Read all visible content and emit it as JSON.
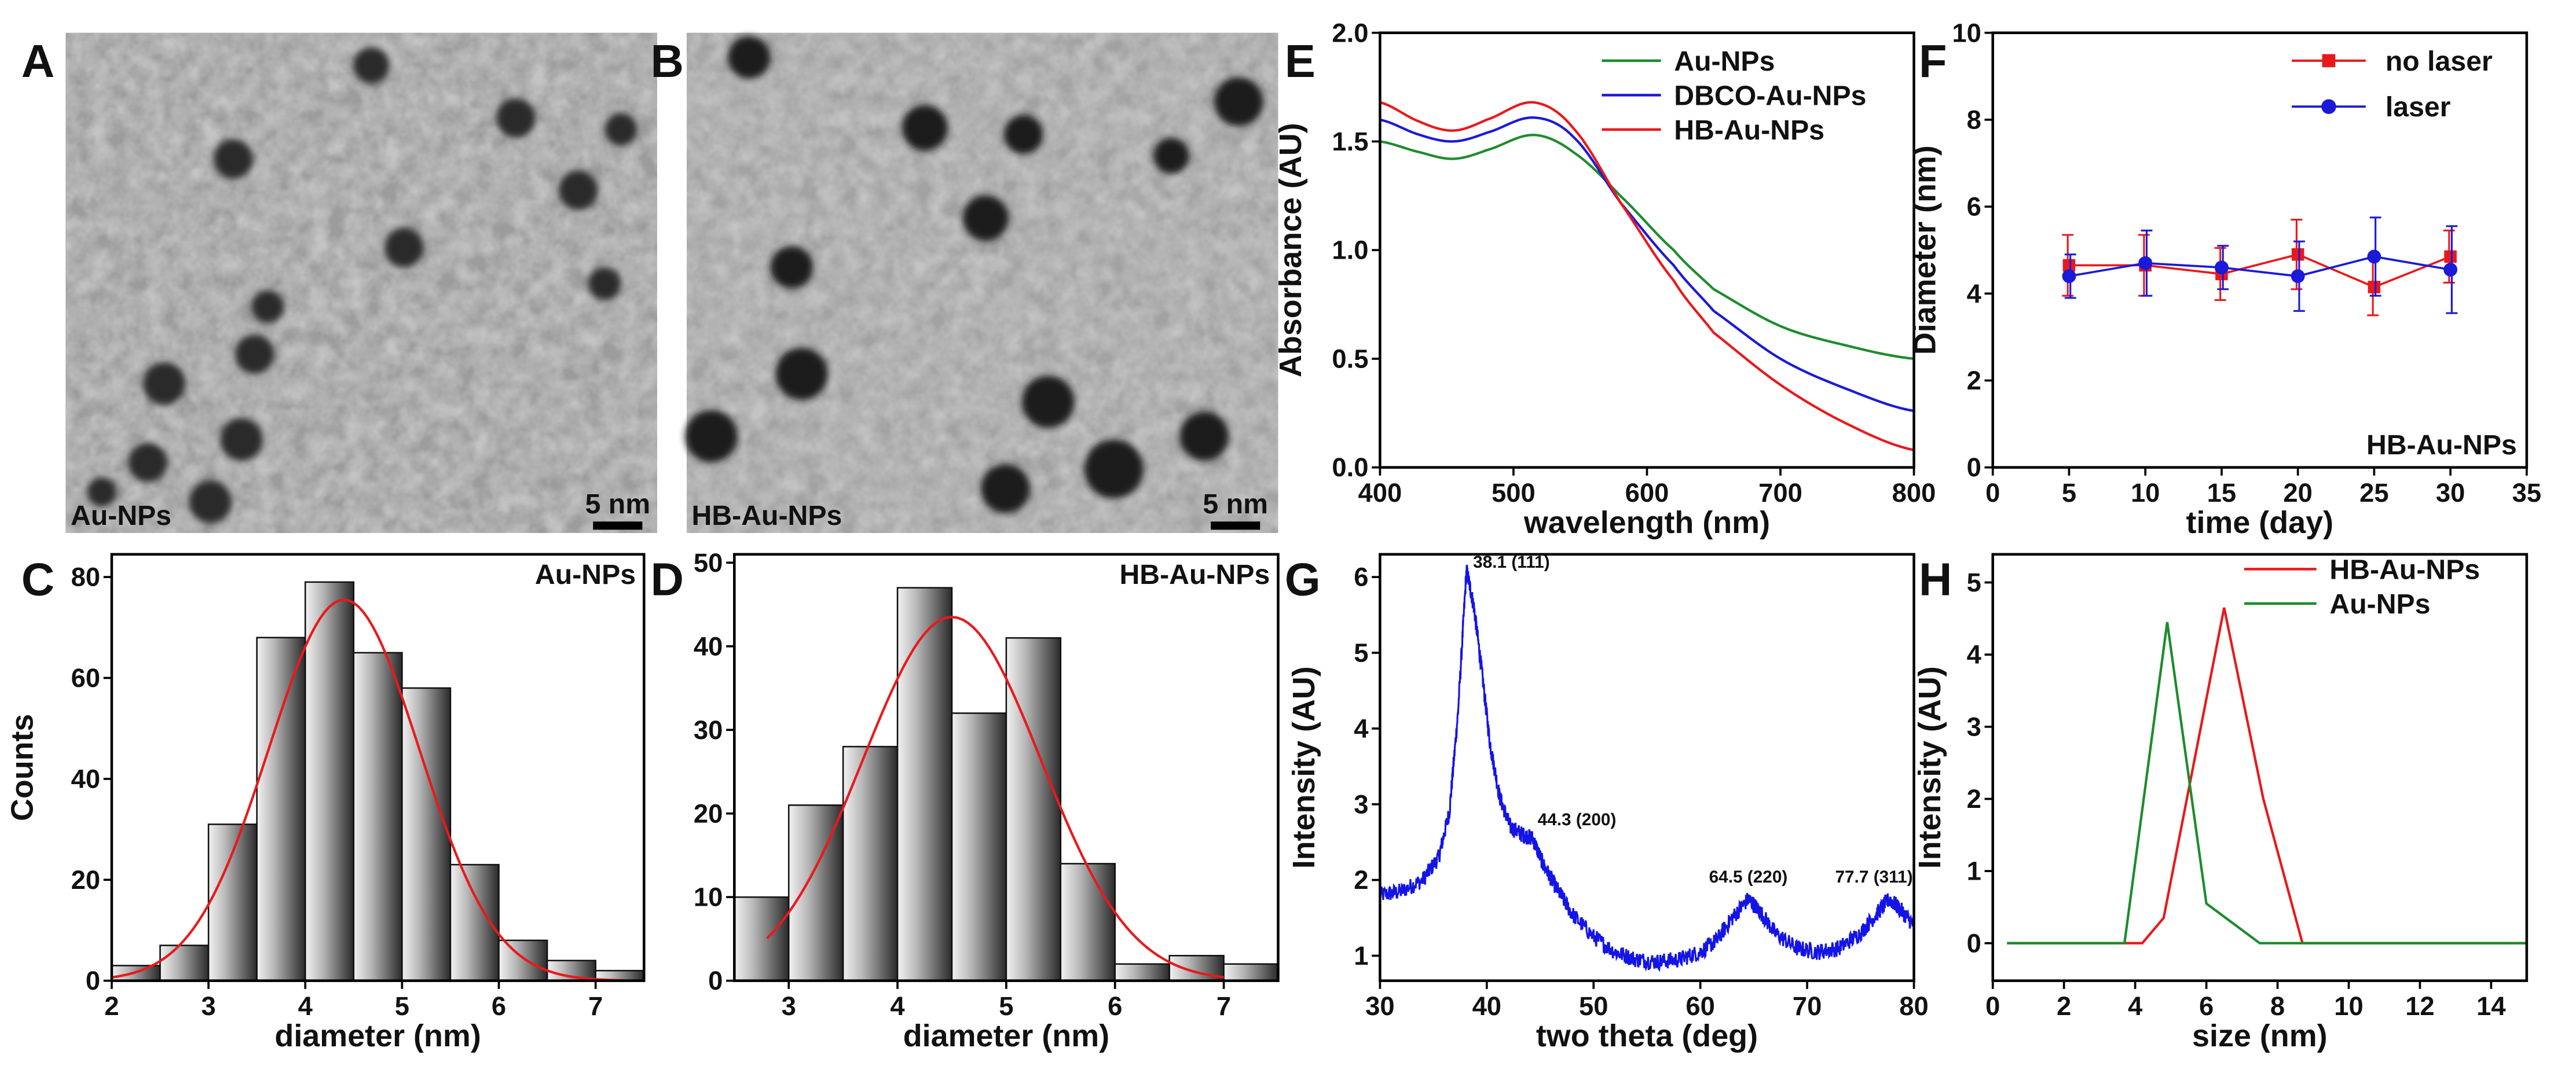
{
  "panels": {
    "A": "A",
    "B": "B",
    "C": "C",
    "D": "D",
    "E": "E",
    "F": "F",
    "G": "G",
    "H": "H"
  },
  "images": {
    "A": {
      "label": "Au-NPs",
      "scale_bar": "5 nm"
    },
    "B": {
      "label": "HB-Au-NPs",
      "scale_bar": "5 nm"
    }
  },
  "colors": {
    "red": "#e8191c",
    "blue": "#1a1ad8",
    "green": "#1c8c2c",
    "xrd": "#1414e6"
  },
  "chart_data": [
    {
      "id": "C",
      "type": "bar",
      "inset_label": "Au-NPs",
      "xlabel": "diameter (nm)",
      "ylabel": "Counts",
      "xlim": [
        2,
        7.5
      ],
      "ylim": [
        0,
        84.5
      ],
      "xticks": [
        2,
        3,
        4,
        5,
        6,
        7
      ],
      "xtick_labels": [
        "2",
        "3",
        "4",
        "5",
        "6",
        "7"
      ],
      "yticks": [
        0,
        20,
        40,
        60,
        80
      ],
      "ytick_labels": [
        "0",
        "20",
        "40",
        "60",
        "80"
      ],
      "bin_width": 0.5,
      "bins": [
        2.25,
        2.75,
        3.25,
        3.75,
        4.25,
        4.75,
        5.25,
        5.75,
        6.25,
        6.75,
        7.25
      ],
      "values": [
        3,
        7,
        31,
        68,
        79,
        65,
        58,
        23,
        8,
        4,
        2
      ],
      "fit": {
        "amplitude": 75.5,
        "mean": 4.4,
        "sigma": 0.78,
        "range": [
          2.0,
          7.3
        ]
      }
    },
    {
      "id": "D",
      "type": "bar",
      "inset_label": "HB-Au-NPs",
      "xlabel": "diameter (nm)",
      "ylabel": "",
      "xlim": [
        2.5,
        7.5
      ],
      "ylim": [
        0,
        51
      ],
      "xticks": [
        3,
        4,
        5,
        6,
        7
      ],
      "xtick_labels": [
        "3",
        "4",
        "5",
        "6",
        "7"
      ],
      "yticks": [
        0,
        10,
        20,
        30,
        40,
        50
      ],
      "ytick_labels": [
        "0",
        "10",
        "20",
        "30",
        "40",
        "50"
      ],
      "bin_width": 0.5,
      "bins": [
        2.75,
        3.25,
        3.75,
        4.25,
        4.75,
        5.25,
        5.75,
        6.25,
        6.75,
        7.25
      ],
      "values": [
        10,
        21,
        28,
        47,
        32,
        41,
        14,
        2,
        3,
        2
      ],
      "fit": {
        "amplitude": 43.5,
        "mean": 4.5,
        "sigma": 0.82,
        "range": [
          2.8,
          7.0
        ]
      }
    },
    {
      "id": "E",
      "type": "line",
      "xlabel": "wavelength (nm)",
      "ylabel": "Absorbance (AU)",
      "xlim": [
        400,
        800
      ],
      "ylim": [
        0,
        2.0
      ],
      "xticks": [
        400,
        500,
        600,
        700,
        800
      ],
      "xtick_labels": [
        "400",
        "500",
        "600",
        "700",
        "800"
      ],
      "yticks": [
        0,
        0.5,
        1.0,
        1.5,
        2.0
      ],
      "ytick_labels": [
        "0.0",
        "0.5",
        "1.0",
        "1.5",
        "2.0"
      ],
      "series": [
        {
          "name": "Au-NPs",
          "color": "#1c8c2c",
          "x": [
            400,
            430,
            455,
            480,
            515,
            545,
            580,
            620,
            650,
            700,
            750,
            800
          ],
          "y": [
            1.5,
            1.45,
            1.42,
            1.46,
            1.53,
            1.45,
            1.25,
            1.0,
            0.82,
            0.65,
            0.56,
            0.5
          ]
        },
        {
          "name": "DBCO-Au-NPs",
          "color": "#1a1ad8",
          "x": [
            400,
            430,
            455,
            480,
            515,
            545,
            580,
            620,
            650,
            700,
            750,
            800
          ],
          "y": [
            1.6,
            1.53,
            1.5,
            1.54,
            1.61,
            1.52,
            1.22,
            0.93,
            0.72,
            0.5,
            0.36,
            0.26
          ]
        },
        {
          "name": "HB-Au-NPs",
          "color": "#e8191c",
          "x": [
            400,
            430,
            455,
            480,
            515,
            545,
            580,
            620,
            650,
            700,
            750,
            800
          ],
          "y": [
            1.68,
            1.59,
            1.55,
            1.6,
            1.68,
            1.56,
            1.22,
            0.86,
            0.62,
            0.38,
            0.2,
            0.08
          ]
        }
      ]
    },
    {
      "id": "F",
      "type": "scatter",
      "inset_label": "HB-Au-NPs",
      "xlabel": "time (day)",
      "ylabel": "Diameter (nm)",
      "xlim": [
        0,
        35
      ],
      "ylim": [
        0,
        10
      ],
      "xticks": [
        0,
        5,
        10,
        15,
        20,
        25,
        30,
        35
      ],
      "xtick_labels": [
        "0",
        "5",
        "10",
        "15",
        "20",
        "25",
        "30",
        "35"
      ],
      "yticks": [
        0,
        2,
        4,
        6,
        8,
        10
      ],
      "ytick_labels": [
        "0",
        "2",
        "4",
        "6",
        "8",
        "10"
      ],
      "series": [
        {
          "name": "no laser",
          "color": "#e8191c",
          "marker": "square",
          "x": [
            5,
            10,
            15,
            20,
            25,
            30
          ],
          "y": [
            4.65,
            4.65,
            4.45,
            4.9,
            4.15,
            4.85
          ],
          "err": [
            0.7,
            0.7,
            0.6,
            0.8,
            0.65,
            0.6
          ]
        },
        {
          "name": "laser",
          "color": "#1a1ad8",
          "marker": "circle",
          "x": [
            5,
            10,
            15,
            20,
            25,
            30
          ],
          "y": [
            4.4,
            4.7,
            4.6,
            4.4,
            4.85,
            4.55
          ],
          "err": [
            0.5,
            0.75,
            0.5,
            0.8,
            0.9,
            1.0
          ]
        }
      ]
    },
    {
      "id": "G",
      "type": "line",
      "xlabel": "two theta (deg)",
      "ylabel": "Intensity (AU)",
      "xlim": [
        30,
        80
      ],
      "ylim": [
        0.67,
        6.3
      ],
      "xticks": [
        30,
        40,
        50,
        60,
        70,
        80
      ],
      "xtick_labels": [
        "30",
        "40",
        "50",
        "60",
        "70",
        "80"
      ],
      "yticks": [
        1,
        2,
        3,
        4,
        5,
        6
      ],
      "ytick_labels": [
        "1",
        "2",
        "3",
        "4",
        "5",
        "6"
      ],
      "series": [
        {
          "name": "XRD",
          "color": "#1414e6",
          "x": [
            30,
            32,
            34,
            35.5,
            36.5,
            37.3,
            38.1,
            38.8,
            39.5,
            40.3,
            41.2,
            42.2,
            43.3,
            44.3,
            45.3,
            46.5,
            48,
            50,
            52,
            54,
            56,
            58,
            60,
            61.5,
            63,
            64.5,
            65.5,
            67,
            69,
            71,
            73,
            75,
            76.5,
            77.7,
            78.8,
            80
          ],
          "y": [
            1.8,
            1.85,
            2.0,
            2.3,
            2.9,
            4.2,
            6.1,
            5.6,
            4.8,
            3.8,
            3.1,
            2.7,
            2.6,
            2.55,
            2.2,
            1.9,
            1.55,
            1.25,
            1.05,
            0.95,
            0.92,
            0.95,
            1.05,
            1.2,
            1.5,
            1.75,
            1.6,
            1.3,
            1.1,
            1.05,
            1.1,
            1.3,
            1.55,
            1.75,
            1.6,
            1.4
          ]
        }
      ],
      "annotations": [
        {
          "x": 38.1,
          "y": 6.1,
          "text": "38.1 (111)"
        },
        {
          "x": 44.3,
          "y": 2.55,
          "text": "44.3 (200)"
        },
        {
          "x": 64.5,
          "y": 1.75,
          "text": "64.5 (220)"
        },
        {
          "x": 77.7,
          "y": 1.75,
          "text": "77.7 (311)"
        }
      ]
    },
    {
      "id": "H",
      "type": "line",
      "xlabel": "size (nm)",
      "ylabel": "Intensity (AU)",
      "xlim": [
        0,
        15
      ],
      "ylim": [
        -0.52,
        5.39
      ],
      "xticks": [
        0,
        2,
        4,
        6,
        8,
        10,
        12,
        14
      ],
      "xtick_labels": [
        "0",
        "2",
        "4",
        "6",
        "8",
        "10",
        "12",
        "14"
      ],
      "yticks": [
        0,
        1,
        2,
        3,
        4,
        5
      ],
      "ytick_labels": [
        "0",
        "1",
        "2",
        "3",
        "4",
        "5"
      ],
      "series": [
        {
          "name": "HB-Au-NPs",
          "color": "#e8191c",
          "x": [
            0.4,
            4.2,
            4.8,
            6.5,
            7.6,
            8.7,
            15
          ],
          "y": [
            0,
            0,
            0.35,
            4.65,
            2.0,
            0,
            0
          ]
        },
        {
          "name": "Au-NPs",
          "color": "#1c8c2c",
          "x": [
            0.4,
            3.7,
            4.9,
            6.0,
            7.5,
            15
          ],
          "y": [
            0,
            0,
            4.45,
            0.55,
            0,
            0
          ]
        }
      ]
    }
  ]
}
